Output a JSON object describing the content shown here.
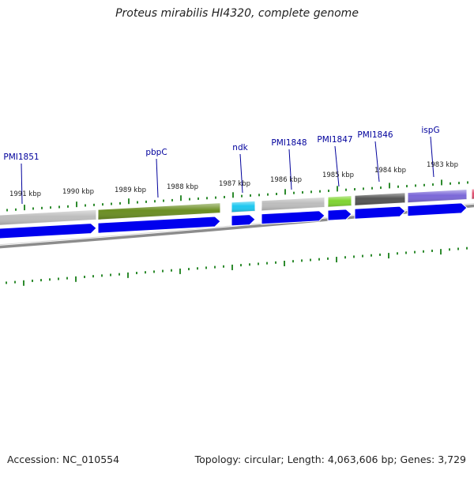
{
  "title": "Proteus mirabilis HI4320, complete genome",
  "footer": {
    "accession": "Accession: NC_010554",
    "summary": "Topology: circular; Length: 4,063,606 bp; Genes: 3,729"
  },
  "scale_labels": [
    "1991 kbp",
    "1990 kbp",
    "1989 kbp",
    "1988 kbp",
    "1987 kbp",
    "1986 kbp",
    "1985 kbp",
    "1984 kbp",
    "1983 kbp"
  ],
  "genes": [
    {
      "label": "",
      "color": "#bdbdbd"
    },
    {
      "label": "PMI1851",
      "color": "#bdbdbd"
    },
    {
      "label": "pbpC",
      "color": "#6b8e23"
    },
    {
      "label": "ndk",
      "color": "#1ec8f0"
    },
    {
      "label": "PMI1848",
      "color": "#bdbdbd"
    },
    {
      "label": "PMI1847",
      "color": "#7fd430"
    },
    {
      "label": "PMI1846",
      "color": "#555555"
    },
    {
      "label": "ispG",
      "color": "#7b68d8"
    },
    {
      "label": "",
      "color": "#e05070"
    }
  ],
  "colors": {
    "cds": "#0000ee",
    "label": "#00009c",
    "tick": "#2e8b2e",
    "backbone": "#8c8c8c"
  }
}
